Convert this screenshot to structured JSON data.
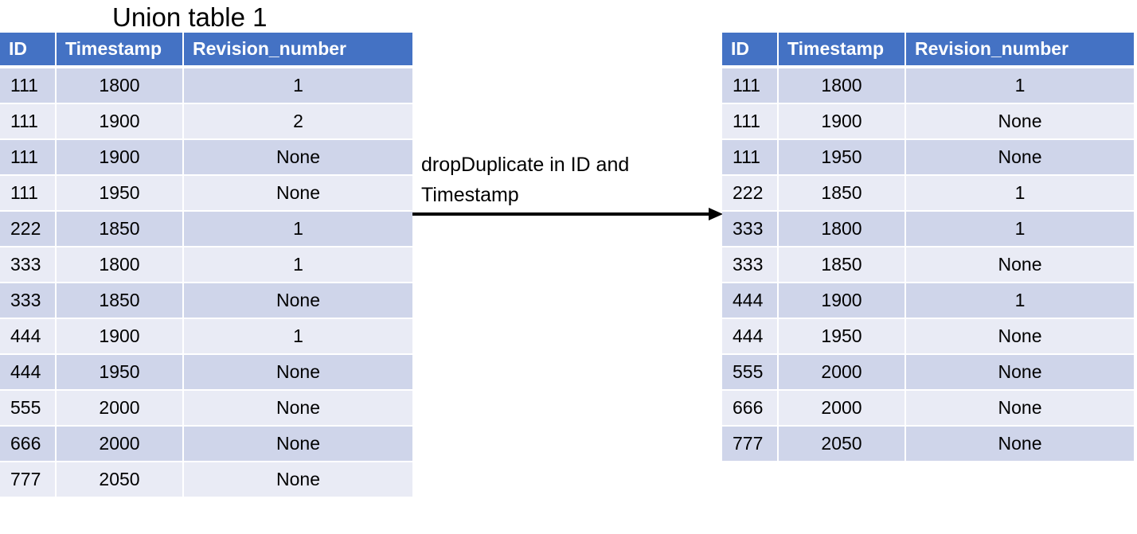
{
  "left_table": {
    "title": "Union table 1",
    "columns": [
      "ID",
      "Timestamp",
      "Revision_number"
    ],
    "rows": [
      [
        "111",
        "1800",
        "1"
      ],
      [
        "111",
        "1900",
        "2"
      ],
      [
        "111",
        "1900",
        "None"
      ],
      [
        "111",
        "1950",
        "None"
      ],
      [
        "222",
        "1850",
        "1"
      ],
      [
        "333",
        "1800",
        "1"
      ],
      [
        "333",
        "1850",
        "None"
      ],
      [
        "444",
        "1900",
        "1"
      ],
      [
        "444",
        "1950",
        "None"
      ],
      [
        "555",
        "2000",
        "None"
      ],
      [
        "666",
        "2000",
        "None"
      ],
      [
        "777",
        "2050",
        "None"
      ]
    ]
  },
  "operation": {
    "label": "dropDuplicate in ID and Timestamp"
  },
  "right_table": {
    "columns": [
      "ID",
      "Timestamp",
      "Revision_number"
    ],
    "rows": [
      [
        "111",
        "1800",
        "1"
      ],
      [
        "111",
        "1900",
        "None"
      ],
      [
        "111",
        "1950",
        "None"
      ],
      [
        "222",
        "1850",
        "1"
      ],
      [
        "333",
        "1800",
        "1"
      ],
      [
        "333",
        "1850",
        "None"
      ],
      [
        "444",
        "1900",
        "1"
      ],
      [
        "444",
        "1950",
        "None"
      ],
      [
        "555",
        "2000",
        "None"
      ],
      [
        "666",
        "2000",
        "None"
      ],
      [
        "777",
        "2050",
        "None"
      ]
    ]
  },
  "colors": {
    "header": "#4472c4",
    "row_dark": "#cfd5ea",
    "row_light": "#e9ebf5"
  }
}
